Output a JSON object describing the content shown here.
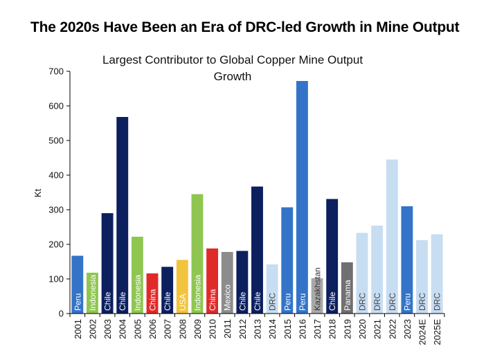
{
  "page": {
    "title": "The 2020s Have Been an Era of DRC-led Growth in Mine Output"
  },
  "chart_data": {
    "type": "bar",
    "title": "Largest Contributor to Global Copper Mine Output Growth",
    "title_lines": [
      "Largest Contributor to Global Copper Mine Output",
      "Growth"
    ],
    "xlabel": "",
    "ylabel": "Kt",
    "ylim": [
      0,
      700
    ],
    "yticks": [
      0,
      100,
      200,
      300,
      400,
      500,
      600,
      700
    ],
    "grid": false,
    "legend": "none",
    "colors": {
      "Chile": "#0c1f5e",
      "Peru": "#3474c8",
      "Indonesia": "#8fc652",
      "China": "#e02a2a",
      "USA": "#f2c43d",
      "Mexico": "#8c8c8c",
      "DRC": "#c7ddf2",
      "Kazakhstan": "#a8a8a8",
      "Panama": "#707070"
    },
    "categories": [
      "2001",
      "2002",
      "2003",
      "2004",
      "2005",
      "2006",
      "2007",
      "2008",
      "2009",
      "2010",
      "2011",
      "2012",
      "2013",
      "2014",
      "2015",
      "2016",
      "2017",
      "2018",
      "2019",
      "2020",
      "2021",
      "2022",
      "2023",
      "2024E",
      "2025E"
    ],
    "values": [
      167,
      118,
      290,
      568,
      222,
      116,
      135,
      155,
      345,
      188,
      178,
      181,
      367,
      142,
      307,
      672,
      102,
      331,
      148,
      233,
      254,
      445,
      310,
      212,
      229
    ],
    "labels": [
      "Peru",
      "Indonesia",
      "Chile",
      "Chile",
      "Indonesia",
      "China",
      "Chile",
      "USA",
      "Indonesia",
      "China",
      "Mexico",
      "Chile",
      "Chile",
      "DRC",
      "Peru",
      "Peru",
      "Kazakhstan",
      "Chile",
      "Panama",
      "DRC",
      "DRC",
      "DRC",
      "Peru",
      "DRC",
      "DRC"
    ]
  }
}
